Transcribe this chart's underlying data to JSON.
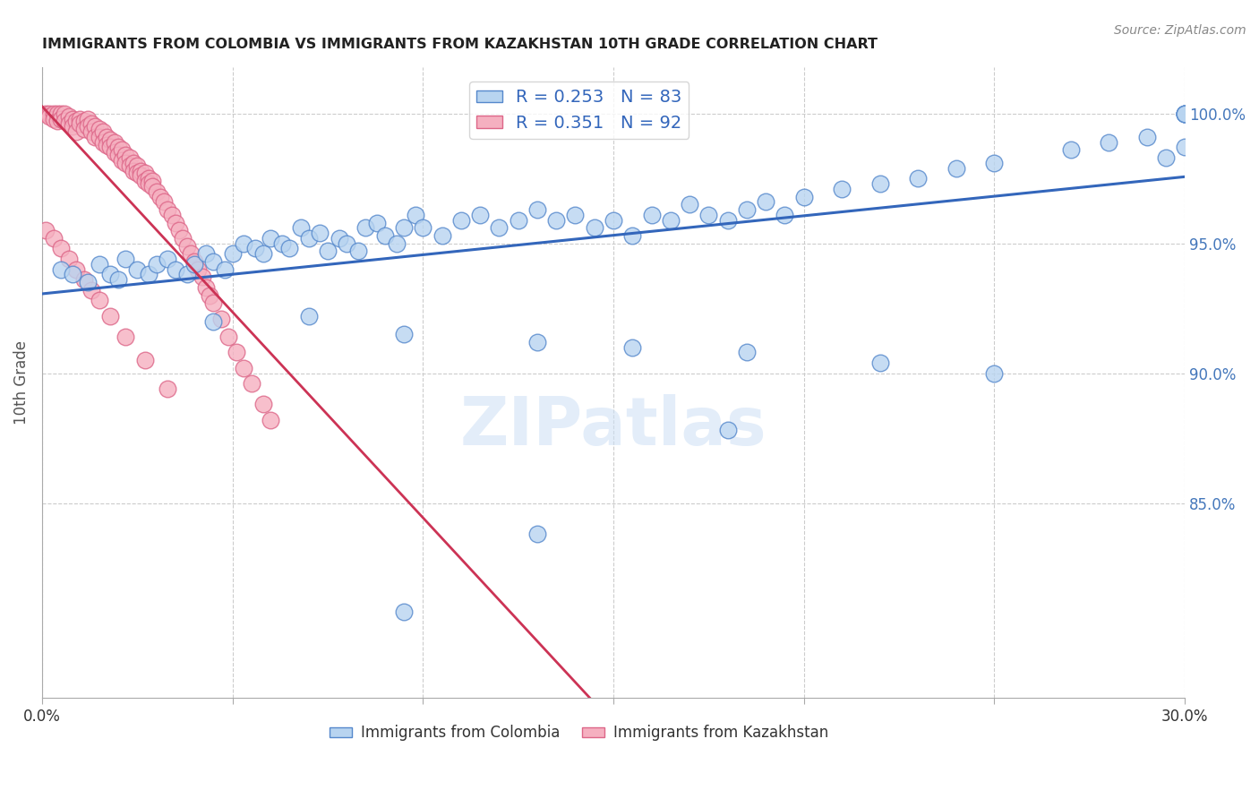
{
  "title": "IMMIGRANTS FROM COLOMBIA VS IMMIGRANTS FROM KAZAKHSTAN 10TH GRADE CORRELATION CHART",
  "source": "Source: ZipAtlas.com",
  "ylabel": "10th Grade",
  "x_min": 0.0,
  "x_max": 0.3,
  "y_min": 0.775,
  "y_max": 1.018,
  "x_ticks": [
    0.0,
    0.05,
    0.1,
    0.15,
    0.2,
    0.25,
    0.3
  ],
  "y_ticks": [
    0.85,
    0.9,
    0.95,
    1.0
  ],
  "y_tick_labels": [
    "85.0%",
    "90.0%",
    "95.0%",
    "100.0%"
  ],
  "colombia_color": "#b8d4f0",
  "kazakhstan_color": "#f5b0c0",
  "colombia_edge": "#5588cc",
  "kazakhstan_edge": "#dd6688",
  "trend_colombia_color": "#3366bb",
  "trend_kazakhstan_color": "#cc3355",
  "legend_R_colombia": "0.253",
  "legend_N_colombia": "83",
  "legend_R_kazakhstan": "0.351",
  "legend_N_kazakhstan": "92",
  "watermark": "ZIPatlas",
  "colombia_x": [
    0.005,
    0.008,
    0.012,
    0.015,
    0.018,
    0.02,
    0.022,
    0.025,
    0.028,
    0.03,
    0.033,
    0.035,
    0.038,
    0.04,
    0.043,
    0.045,
    0.048,
    0.05,
    0.053,
    0.056,
    0.058,
    0.06,
    0.063,
    0.065,
    0.068,
    0.07,
    0.073,
    0.075,
    0.078,
    0.08,
    0.083,
    0.085,
    0.088,
    0.09,
    0.093,
    0.095,
    0.098,
    0.1,
    0.105,
    0.11,
    0.115,
    0.12,
    0.125,
    0.13,
    0.135,
    0.14,
    0.145,
    0.15,
    0.155,
    0.16,
    0.165,
    0.17,
    0.175,
    0.18,
    0.185,
    0.19,
    0.195,
    0.2,
    0.21,
    0.22,
    0.23,
    0.24,
    0.25,
    0.27,
    0.28,
    0.29,
    0.295,
    0.3,
    0.3,
    0.3,
    0.3,
    0.3,
    0.045,
    0.07,
    0.095,
    0.13,
    0.155,
    0.185,
    0.22,
    0.25,
    0.18,
    0.13,
    0.095
  ],
  "colombia_y": [
    0.94,
    0.938,
    0.935,
    0.942,
    0.938,
    0.936,
    0.944,
    0.94,
    0.938,
    0.942,
    0.944,
    0.94,
    0.938,
    0.942,
    0.946,
    0.943,
    0.94,
    0.946,
    0.95,
    0.948,
    0.946,
    0.952,
    0.95,
    0.948,
    0.956,
    0.952,
    0.954,
    0.947,
    0.952,
    0.95,
    0.947,
    0.956,
    0.958,
    0.953,
    0.95,
    0.956,
    0.961,
    0.956,
    0.953,
    0.959,
    0.961,
    0.956,
    0.959,
    0.963,
    0.959,
    0.961,
    0.956,
    0.959,
    0.953,
    0.961,
    0.959,
    0.965,
    0.961,
    0.959,
    0.963,
    0.966,
    0.961,
    0.968,
    0.971,
    0.973,
    0.975,
    0.979,
    0.981,
    0.986,
    0.989,
    0.991,
    0.983,
    1.0,
    1.0,
    1.0,
    1.0,
    0.987,
    0.92,
    0.922,
    0.915,
    0.912,
    0.91,
    0.908,
    0.904,
    0.9,
    0.878,
    0.838,
    0.808
  ],
  "kazakhstan_x": [
    0.001,
    0.002,
    0.002,
    0.003,
    0.003,
    0.004,
    0.004,
    0.005,
    0.005,
    0.006,
    0.006,
    0.007,
    0.007,
    0.008,
    0.008,
    0.009,
    0.009,
    0.01,
    0.01,
    0.011,
    0.011,
    0.012,
    0.012,
    0.013,
    0.013,
    0.014,
    0.014,
    0.015,
    0.015,
    0.016,
    0.016,
    0.017,
    0.017,
    0.018,
    0.018,
    0.019,
    0.019,
    0.02,
    0.02,
    0.021,
    0.021,
    0.022,
    0.022,
    0.023,
    0.023,
    0.024,
    0.024,
    0.025,
    0.025,
    0.026,
    0.026,
    0.027,
    0.027,
    0.028,
    0.028,
    0.029,
    0.029,
    0.03,
    0.031,
    0.032,
    0.033,
    0.034,
    0.035,
    0.036,
    0.037,
    0.038,
    0.039,
    0.04,
    0.041,
    0.042,
    0.043,
    0.044,
    0.045,
    0.047,
    0.049,
    0.051,
    0.053,
    0.055,
    0.058,
    0.06,
    0.001,
    0.003,
    0.005,
    0.007,
    0.009,
    0.011,
    0.013,
    0.015,
    0.018,
    0.022,
    0.027,
    0.033
  ],
  "kazakhstan_y": [
    1.0,
    1.0,
    0.999,
    1.0,
    0.998,
    1.0,
    0.997,
    1.0,
    0.998,
    1.0,
    0.997,
    0.999,
    0.996,
    0.998,
    0.995,
    0.997,
    0.993,
    0.998,
    0.996,
    0.997,
    0.994,
    0.998,
    0.995,
    0.996,
    0.993,
    0.995,
    0.991,
    0.994,
    0.991,
    0.993,
    0.989,
    0.991,
    0.988,
    0.99,
    0.987,
    0.989,
    0.985,
    0.987,
    0.984,
    0.986,
    0.982,
    0.984,
    0.981,
    0.983,
    0.98,
    0.981,
    0.978,
    0.98,
    0.977,
    0.978,
    0.976,
    0.977,
    0.974,
    0.975,
    0.973,
    0.974,
    0.972,
    0.97,
    0.968,
    0.966,
    0.963,
    0.961,
    0.958,
    0.955,
    0.952,
    0.949,
    0.946,
    0.943,
    0.94,
    0.937,
    0.933,
    0.93,
    0.927,
    0.921,
    0.914,
    0.908,
    0.902,
    0.896,
    0.888,
    0.882,
    0.955,
    0.952,
    0.948,
    0.944,
    0.94,
    0.936,
    0.932,
    0.928,
    0.922,
    0.914,
    0.905,
    0.894
  ]
}
